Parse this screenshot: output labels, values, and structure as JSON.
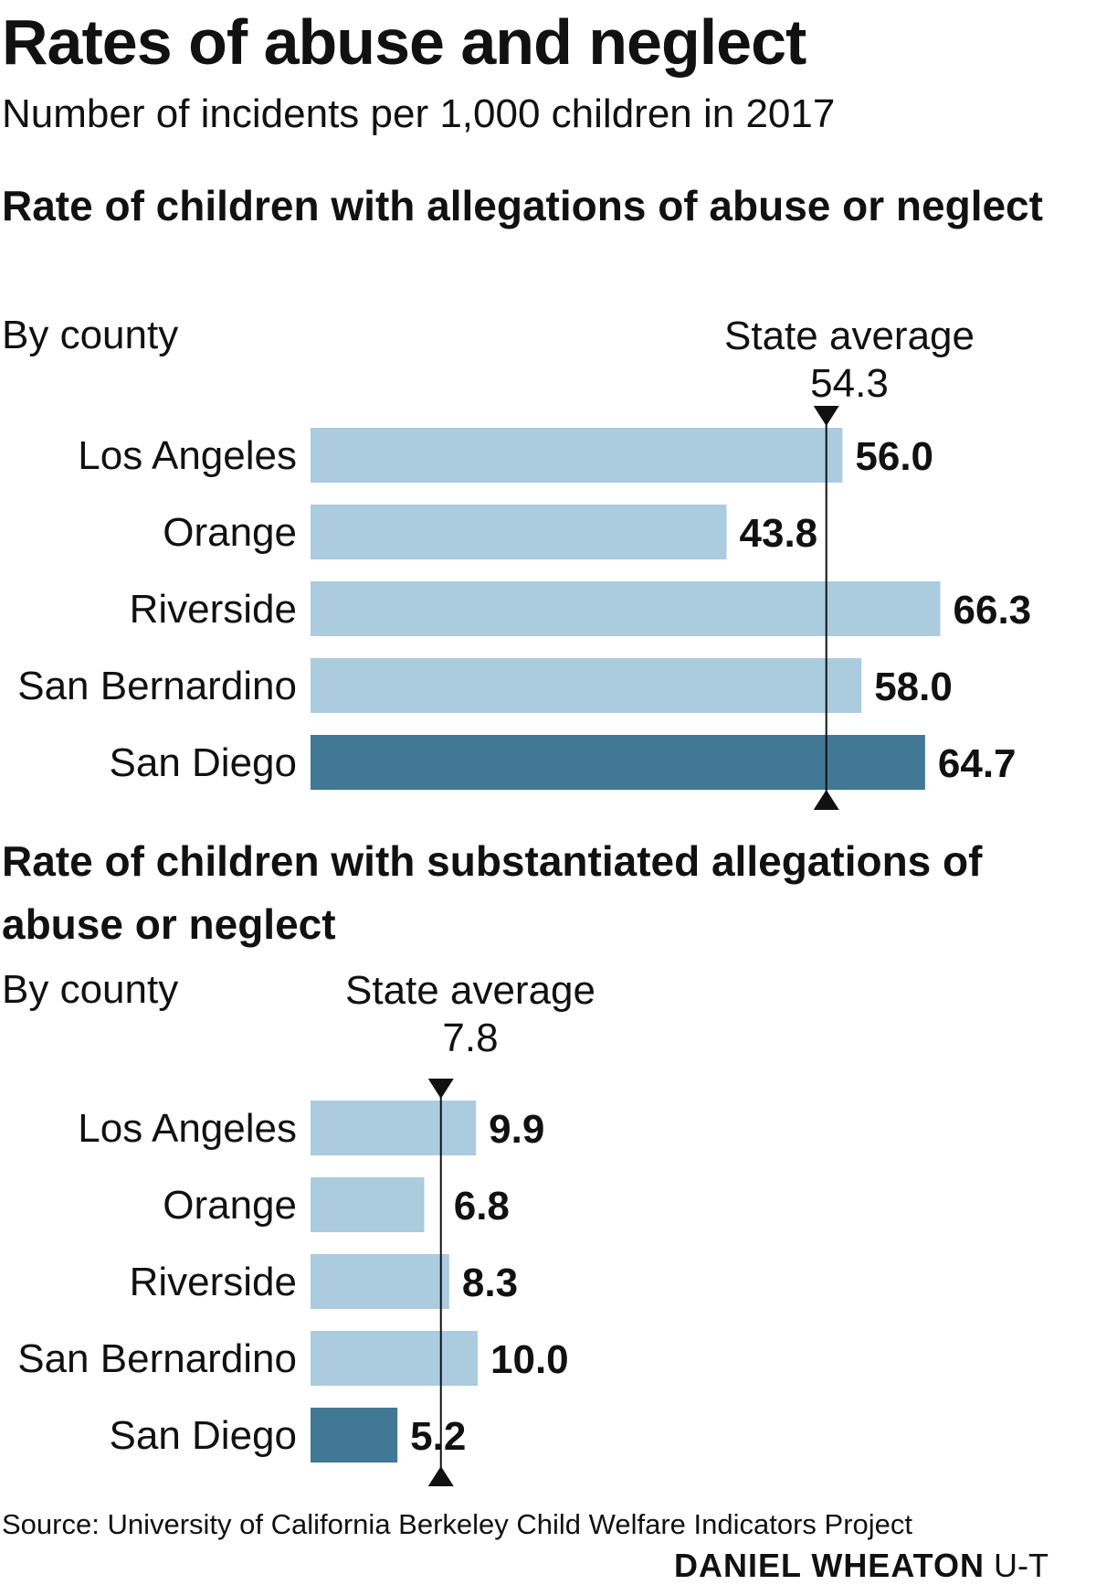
{
  "title": "Rates of abuse and neglect",
  "subtitle": "Number of incidents per 1,000 children in 2017",
  "source": "Source: University of California Berkeley Child Welfare Indicators Project",
  "credit_name": "DANIEL WHEATON",
  "credit_org": "U-T",
  "colors": {
    "bar": "#abcbdf",
    "highlight": "#417895",
    "marker": "#111111"
  },
  "chart_data": [
    {
      "type": "bar",
      "orientation": "horizontal",
      "title": "Rate of children with allegations of abuse or neglect",
      "subtitle": "By county",
      "reference_line": {
        "label": "State average",
        "value": 54.3,
        "value_label": "54.3"
      },
      "categories": [
        "Los Angeles",
        "Orange",
        "Riverside",
        "San Bernardino",
        "San Diego"
      ],
      "values": [
        56.0,
        43.8,
        66.3,
        58.0,
        64.7
      ],
      "value_labels": [
        "56.0",
        "43.8",
        "66.3",
        "58.0",
        "64.7"
      ],
      "highlight": "San Diego"
    },
    {
      "type": "bar",
      "orientation": "horizontal",
      "title": "Rate of children with substantiated allegations of abuse or neglect",
      "subtitle": "By county",
      "reference_line": {
        "label": "State average",
        "value": 7.8,
        "value_label": "7.8"
      },
      "categories": [
        "Los Angeles",
        "Orange",
        "Riverside",
        "San Bernardino",
        "San Diego"
      ],
      "values": [
        9.9,
        6.8,
        8.3,
        10.0,
        5.2
      ],
      "value_labels": [
        "9.9",
        "6.8",
        "8.3",
        "10.0",
        "5.2"
      ],
      "highlight": "San Diego"
    }
  ]
}
